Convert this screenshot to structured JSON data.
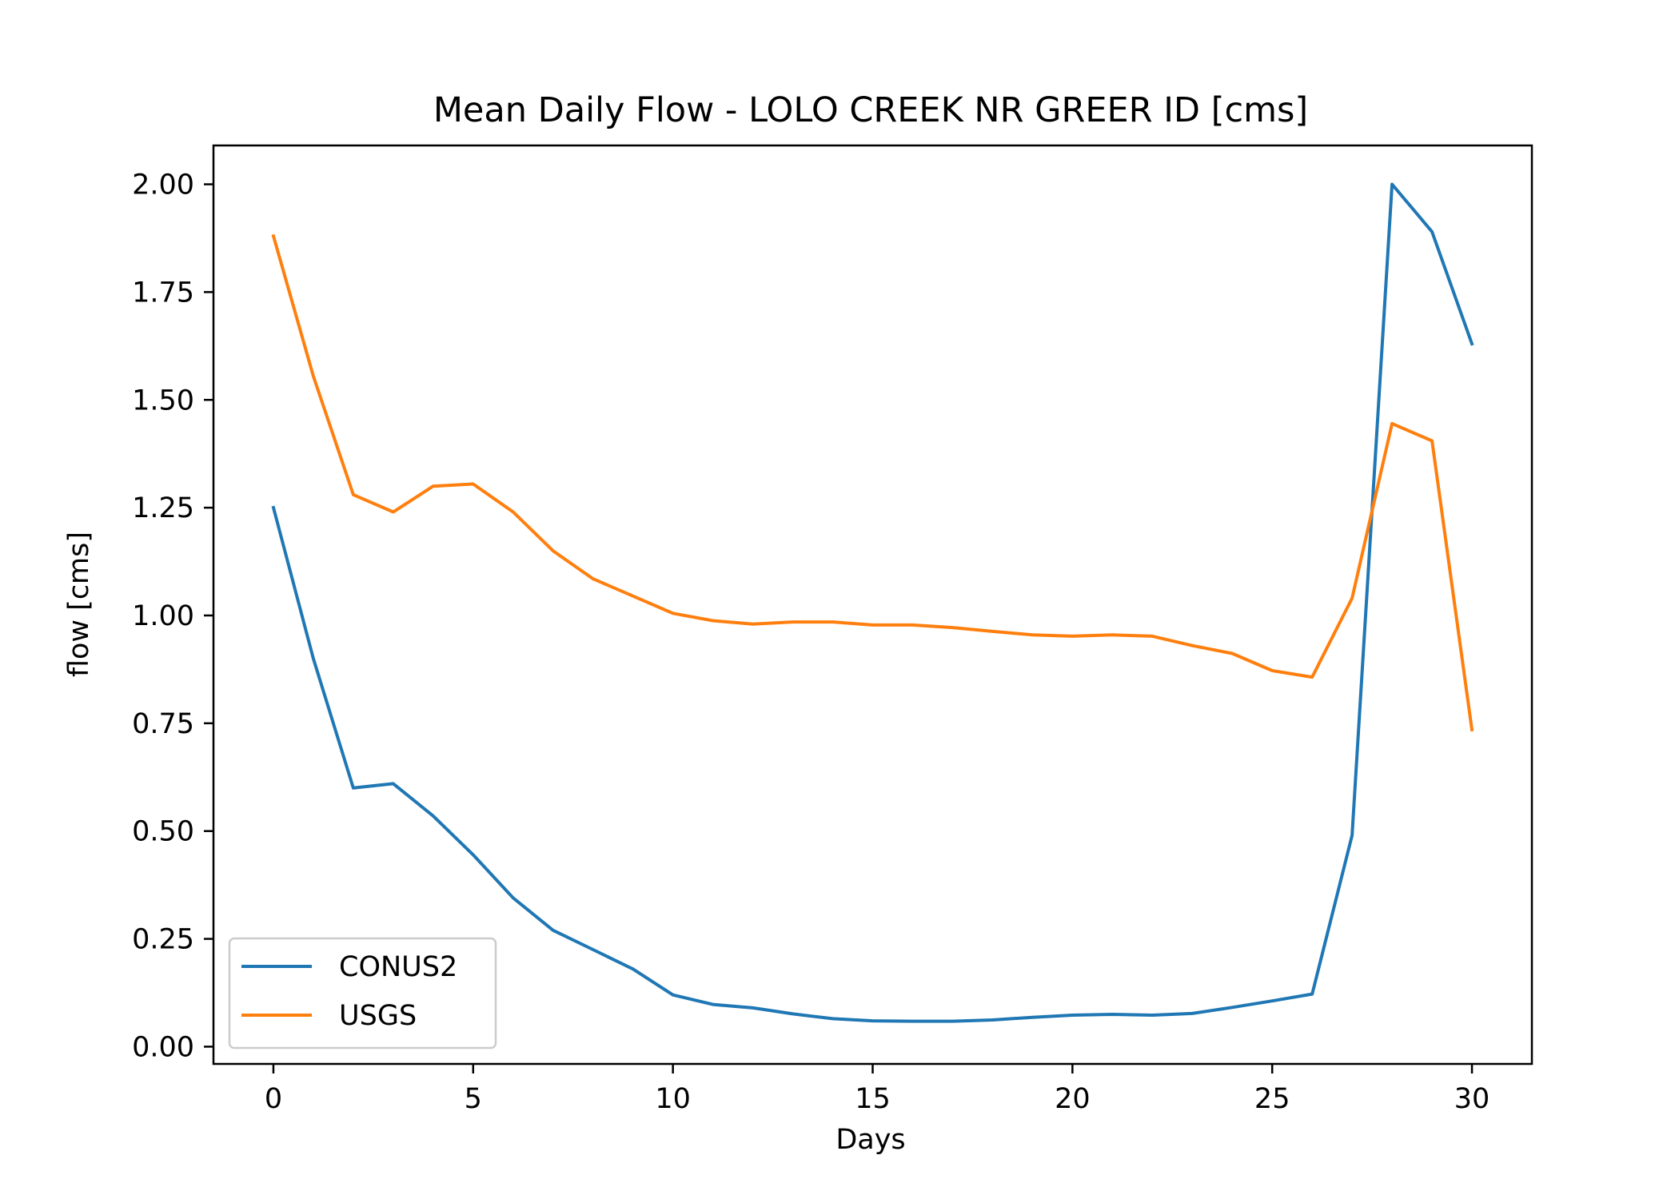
{
  "chart_data": {
    "type": "line",
    "title": "Mean Daily Flow - LOLO CREEK NR GREER ID [cms]",
    "xlabel": "Days",
    "ylabel": "flow [cms]",
    "xlim": [
      -1.5,
      31.5
    ],
    "ylim": [
      -0.04,
      2.09
    ],
    "xticks": [
      0,
      5,
      10,
      15,
      20,
      25,
      30
    ],
    "xtick_labels": [
      "0",
      "5",
      "10",
      "15",
      "20",
      "25",
      "30"
    ],
    "yticks": [
      0,
      0.25,
      0.5,
      0.75,
      1.0,
      1.25,
      1.5,
      1.75,
      2.0
    ],
    "ytick_labels": [
      "0.00",
      "0.25",
      "0.50",
      "0.75",
      "1.00",
      "1.25",
      "1.50",
      "1.75",
      "2.00"
    ],
    "grid": false,
    "legend_position": "lower-left",
    "x": [
      0,
      1,
      2,
      3,
      4,
      5,
      6,
      7,
      8,
      9,
      10,
      11,
      12,
      13,
      14,
      15,
      16,
      17,
      18,
      19,
      20,
      21,
      22,
      23,
      24,
      25,
      26,
      27,
      28,
      29,
      30
    ],
    "series": [
      {
        "name": "CONUS2",
        "color": "#1f77b4",
        "values": [
          1.25,
          0.9,
          0.6,
          0.61,
          0.535,
          0.445,
          0.345,
          0.27,
          0.225,
          0.18,
          0.12,
          0.098,
          0.09,
          0.076,
          0.065,
          0.06,
          0.059,
          0.059,
          0.062,
          0.068,
          0.073,
          0.075,
          0.073,
          0.077,
          0.091,
          0.106,
          0.122,
          0.49,
          2.0,
          1.89,
          1.63
        ]
      },
      {
        "name": "USGS",
        "color": "#ff7f0e",
        "values": [
          1.88,
          1.555,
          1.28,
          1.24,
          1.3,
          1.305,
          1.24,
          1.15,
          1.085,
          1.045,
          1.005,
          0.988,
          0.98,
          0.985,
          0.985,
          0.978,
          0.978,
          0.972,
          0.963,
          0.955,
          0.952,
          0.955,
          0.952,
          0.93,
          0.912,
          0.872,
          0.857,
          1.04,
          1.445,
          1.405,
          0.735
        ]
      }
    ]
  }
}
